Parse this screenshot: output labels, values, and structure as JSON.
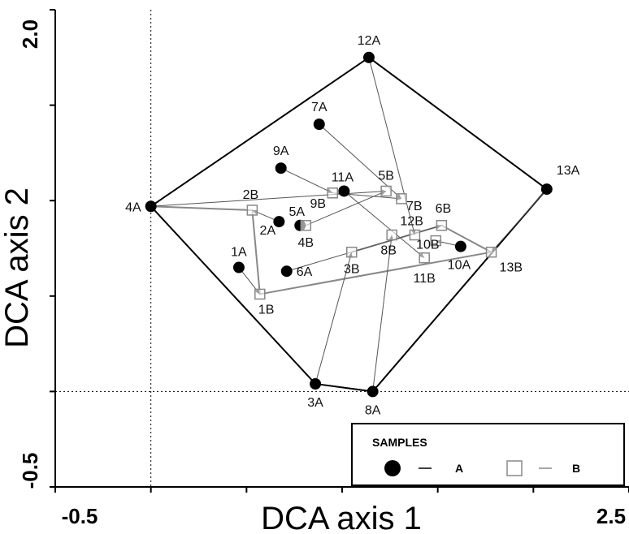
{
  "chart_data": {
    "type": "scatter",
    "xlabel": "DCA axis 1",
    "ylabel": "DCA axis 2",
    "xlim": [
      -0.5,
      2.5
    ],
    "ylim": [
      -0.5,
      2.0
    ],
    "x_tick_labels": [
      {
        "value": -0.5,
        "label": "-0.5"
      },
      {
        "value": 2.5,
        "label": "2.5"
      }
    ],
    "y_tick_labels": [
      {
        "value": -0.5,
        "label": "-0.5"
      },
      {
        "value": 2.0,
        "label": "2.0"
      }
    ],
    "x_ticks": [
      -0.5,
      0,
      0.5,
      1,
      1.5,
      2,
      2.5
    ],
    "y_ticks": [
      -0.5,
      0,
      0.5,
      1,
      1.5,
      2
    ],
    "reference_lines": {
      "x": 0,
      "y": 0
    },
    "grid": false,
    "colors": {
      "series_a": "#000000",
      "series_b": "#888888",
      "hull": "#000000",
      "vectors": "#555555"
    },
    "series": [
      {
        "name": "A",
        "marker": "filled-circle",
        "points": [
          {
            "label": "1A",
            "x": 0.46,
            "y": 0.65
          },
          {
            "label": "2A",
            "x": 0.67,
            "y": 0.89
          },
          {
            "label": "3A",
            "x": 0.86,
            "y": 0.04
          },
          {
            "label": "4A",
            "x": 0.0,
            "y": 0.97
          },
          {
            "label": "5A",
            "x": 0.78,
            "y": 0.87
          },
          {
            "label": "6A",
            "x": 0.71,
            "y": 0.63
          },
          {
            "label": "7A",
            "x": 0.88,
            "y": 1.4
          },
          {
            "label": "8A",
            "x": 1.16,
            "y": 0.0
          },
          {
            "label": "9A",
            "x": 0.68,
            "y": 1.17
          },
          {
            "label": "10A",
            "x": 1.62,
            "y": 0.76
          },
          {
            "label": "11A",
            "x": 1.01,
            "y": 1.05
          },
          {
            "label": "12A",
            "x": 1.14,
            "y": 1.75
          },
          {
            "label": "13A",
            "x": 2.07,
            "y": 1.06
          }
        ]
      },
      {
        "name": "B",
        "marker": "open-square",
        "points": [
          {
            "label": "1B",
            "x": 0.57,
            "y": 0.51
          },
          {
            "label": "2B",
            "x": 0.53,
            "y": 0.95
          },
          {
            "label": "3B",
            "x": 1.05,
            "y": 0.73
          },
          {
            "label": "4B",
            "x": 0.81,
            "y": 0.87
          },
          {
            "label": "5B",
            "x": 1.23,
            "y": 1.05
          },
          {
            "label": "6B",
            "x": 1.52,
            "y": 0.87
          },
          {
            "label": "7B",
            "x": 1.31,
            "y": 1.01
          },
          {
            "label": "8B",
            "x": 1.26,
            "y": 0.82
          },
          {
            "label": "9B",
            "x": 0.95,
            "y": 1.04
          },
          {
            "label": "10B",
            "x": 1.49,
            "y": 0.79
          },
          {
            "label": "11B",
            "x": 1.43,
            "y": 0.7
          },
          {
            "label": "12B",
            "x": 1.38,
            "y": 0.82
          },
          {
            "label": "13B",
            "x": 1.78,
            "y": 0.73
          }
        ]
      }
    ],
    "hull_polygon": [
      "12A",
      "13A",
      "8A",
      "3A",
      "4A"
    ],
    "series_b_path": [
      "4A",
      "2B",
      "1B",
      "13B",
      "6B",
      "3B"
    ],
    "vectors": [
      {
        "from": "1A",
        "to": "1B"
      },
      {
        "from": "2A",
        "to": "2B"
      },
      {
        "from": "3A",
        "to": "3B"
      },
      {
        "from": "4A",
        "to": "5B"
      },
      {
        "from": "5A",
        "to": "4B"
      },
      {
        "from": "6A",
        "to": "6B"
      },
      {
        "from": "7A",
        "to": "7B"
      },
      {
        "from": "8A",
        "to": "8B"
      },
      {
        "from": "9A",
        "to": "9B"
      },
      {
        "from": "10A",
        "to": "10B"
      },
      {
        "from": "11A",
        "to": "11B"
      },
      {
        "from": "12A",
        "to": "12B"
      },
      {
        "from": "13A",
        "to": "13B"
      },
      {
        "from": "4B",
        "to": "5B"
      },
      {
        "from": "9B",
        "to": "7B"
      }
    ],
    "legend": {
      "title": "SAMPLES",
      "position": "bottom-right",
      "entries": [
        {
          "label": "A",
          "marker": "filled-circle",
          "line": "black"
        },
        {
          "label": "B",
          "marker": "open-square",
          "line": "gray"
        }
      ]
    }
  }
}
